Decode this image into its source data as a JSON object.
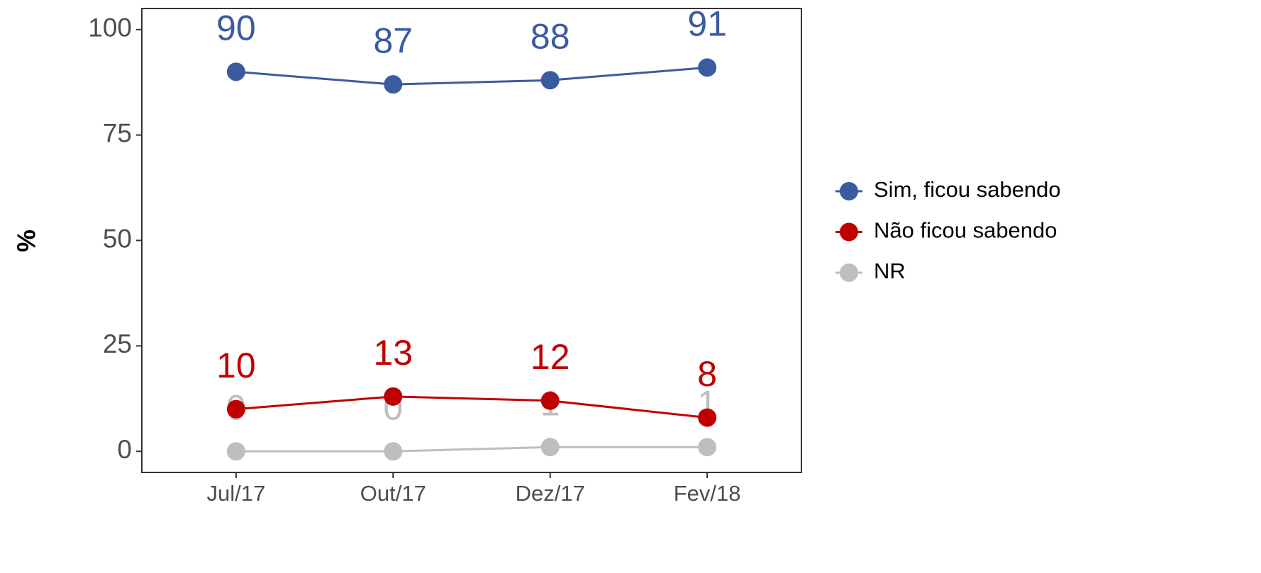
{
  "chart_data": {
    "type": "line",
    "y_label": "%",
    "categories": [
      "Jul/17",
      "Out/17",
      "Dez/17",
      "Fev/18"
    ],
    "series": [
      {
        "name": "Sim, ficou sabendo",
        "color": "#3b5ba0",
        "values": [
          90,
          87,
          88,
          91
        ]
      },
      {
        "name": "Não ficou sabendo",
        "color": "#c00000",
        "values": [
          10,
          13,
          12,
          8
        ]
      },
      {
        "name": "NR",
        "color": "#bebebe",
        "values": [
          0,
          0,
          1,
          1
        ]
      }
    ],
    "ylim": [
      -5,
      105
    ],
    "yticks": [
      0,
      25,
      50,
      75,
      100
    ],
    "grid": false,
    "legend": "right"
  }
}
